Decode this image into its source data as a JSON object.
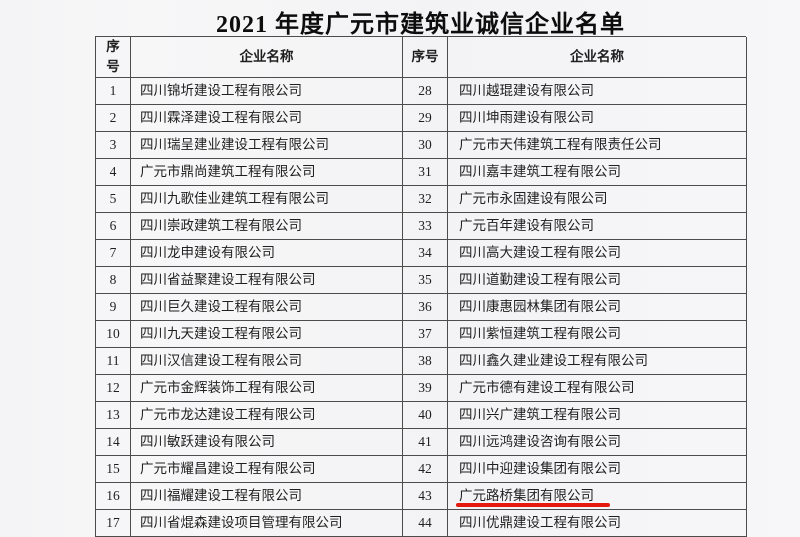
{
  "title": "2021 年度广元市建筑业诚信企业名单",
  "colors": {
    "underline_red": "#e41a0f",
    "border_gray": "#4c4c4c",
    "paper": "#f5f5f7"
  },
  "table": {
    "headers": [
      "序号",
      "企业名称",
      "序号",
      "企业名称"
    ],
    "rows": [
      {
        "no_left": "1",
        "name_left": "四川锦圻建设工程有限公司",
        "no_right": "28",
        "name_right": "四川越琨建设有限公司",
        "highlight_right": false
      },
      {
        "no_left": "2",
        "name_left": "四川霖泽建设工程有限公司",
        "no_right": "29",
        "name_right": "四川坤雨建设有限公司",
        "highlight_right": false
      },
      {
        "no_left": "3",
        "name_left": "四川瑞呈建业建设工程有限公司",
        "no_right": "30",
        "name_right": "广元市天伟建筑工程有限责任公司",
        "highlight_right": false
      },
      {
        "no_left": "4",
        "name_left": "广元市鼎尚建筑工程有限公司",
        "no_right": "31",
        "name_right": "四川嘉丰建筑工程有限公司",
        "highlight_right": false
      },
      {
        "no_left": "5",
        "name_left": "四川九歌佳业建筑工程有限公司",
        "no_right": "32",
        "name_right": "广元市永固建设有限公司",
        "highlight_right": false
      },
      {
        "no_left": "6",
        "name_left": "四川崇政建筑工程有限公司",
        "no_right": "33",
        "name_right": "广元百年建设有限公司",
        "highlight_right": false
      },
      {
        "no_left": "7",
        "name_left": "四川龙申建设有限公司",
        "no_right": "34",
        "name_right": "四川高大建设工程有限公司",
        "highlight_right": false
      },
      {
        "no_left": "8",
        "name_left": "四川省益聚建设工程有限公司",
        "no_right": "35",
        "name_right": "四川道勤建设工程有限公司",
        "highlight_right": false
      },
      {
        "no_left": "9",
        "name_left": "四川巨久建设工程有限公司",
        "no_right": "36",
        "name_right": "四川康惠园林集团有限公司",
        "highlight_right": false
      },
      {
        "no_left": "10",
        "name_left": "四川九天建设工程有限公司",
        "no_right": "37",
        "name_right": "四川紫恒建筑工程有限公司",
        "highlight_right": false
      },
      {
        "no_left": "11",
        "name_left": "四川汉信建设工程有限公司",
        "no_right": "38",
        "name_right": "四川鑫久建业建设工程有限公司",
        "highlight_right": false
      },
      {
        "no_left": "12",
        "name_left": "广元市金辉装饰工程有限公司",
        "no_right": "39",
        "name_right": "广元市德有建设工程有限公司",
        "highlight_right": false
      },
      {
        "no_left": "13",
        "name_left": "广元市龙达建设工程有限公司",
        "no_right": "40",
        "name_right": "四川兴广建筑工程有限公司",
        "highlight_right": false
      },
      {
        "no_left": "14",
        "name_left": "四川敏跃建设有限公司",
        "no_right": "41",
        "name_right": "四川远鸿建设咨询有限公司",
        "highlight_right": false
      },
      {
        "no_left": "15",
        "name_left": "广元市耀昌建设工程有限公司",
        "no_right": "42",
        "name_right": "四川中迎建设集团有限公司",
        "highlight_right": false
      },
      {
        "no_left": "16",
        "name_left": "四川福耀建设工程有限公司",
        "no_right": "43",
        "name_right": "广元路桥集团有限公司",
        "highlight_right": true
      },
      {
        "no_left": "17",
        "name_left": "四川省焜森建设项目管理有限公司",
        "no_right": "44",
        "name_right": "四川优鼎建设工程有限公司",
        "highlight_right": false
      }
    ]
  }
}
